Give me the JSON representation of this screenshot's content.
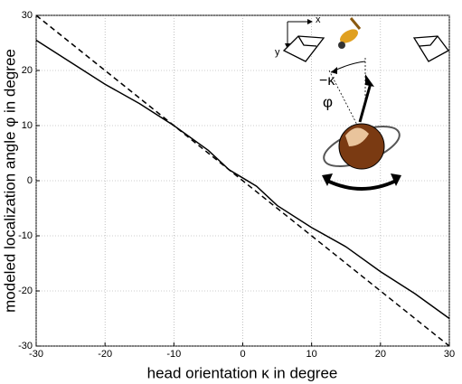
{
  "chart_data": {
    "type": "line",
    "x_label": "head orientation κ in degree",
    "y_label": "modeled localization angle φ in degree",
    "x": [
      -30,
      -25,
      -20,
      -15,
      -10,
      -5,
      -2,
      0,
      2,
      5,
      10,
      15,
      20,
      25,
      30
    ],
    "series": [
      {
        "color": "#000000",
        "dash": false,
        "values": [
          25.5,
          21.5,
          17.5,
          14,
          10,
          5.5,
          2,
          0.5,
          -1,
          -4.5,
          -8.5,
          -12,
          -16.5,
          -20.5,
          -25
        ]
      },
      {
        "color": "#000000",
        "dash": true,
        "values": [
          30,
          25,
          20,
          15,
          10,
          5,
          2,
          0,
          -2,
          -5,
          -10,
          -15,
          -20,
          -25,
          -30
        ]
      }
    ],
    "xlim": [
      -30,
      30
    ],
    "ylim": [
      -30,
      30
    ],
    "xticks": [
      -30,
      -20,
      -10,
      0,
      10,
      20,
      30
    ],
    "yticks": [
      -30,
      -20,
      -10,
      0,
      10,
      20,
      30
    ],
    "grid": true,
    "annotations": [
      "x",
      "y",
      "−κ",
      "φ"
    ]
  }
}
